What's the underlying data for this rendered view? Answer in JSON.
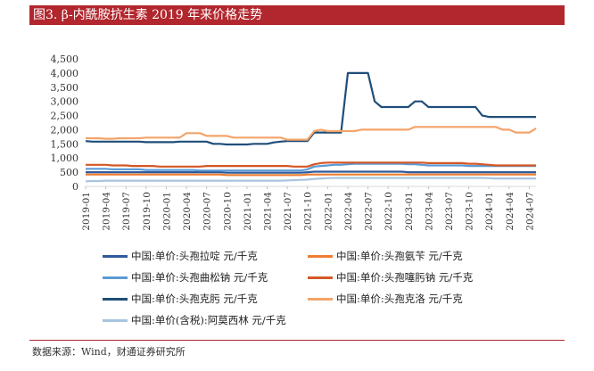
{
  "title": "图3. β-内酰胺抗生素 2019 年来价格走势",
  "source": "数据来源：Wind，财通证券研究所",
  "chart_data": {
    "type": "line",
    "x": [
      "2019-01",
      "2019-02",
      "2019-03",
      "2019-04",
      "2019-05",
      "2019-06",
      "2019-07",
      "2019-08",
      "2019-09",
      "2019-10",
      "2019-11",
      "2019-12",
      "2020-01",
      "2020-02",
      "2020-03",
      "2020-04",
      "2020-05",
      "2020-06",
      "2020-07",
      "2020-08",
      "2020-09",
      "2020-10",
      "2020-11",
      "2020-12",
      "2021-01",
      "2021-02",
      "2021-03",
      "2021-04",
      "2021-05",
      "2021-06",
      "2021-07",
      "2021-08",
      "2021-09",
      "2021-10",
      "2021-11",
      "2021-12",
      "2022-01",
      "2022-02",
      "2022-03",
      "2022-04",
      "2022-05",
      "2022-06",
      "2022-07",
      "2022-08",
      "2022-09",
      "2022-10",
      "2022-11",
      "2022-12",
      "2023-01",
      "2023-02",
      "2023-03",
      "2023-04",
      "2023-05",
      "2023-06",
      "2023-07",
      "2023-08",
      "2023-09",
      "2023-10",
      "2023-11",
      "2023-12",
      "2024-01",
      "2024-02",
      "2024-03",
      "2024-04",
      "2024-05",
      "2024-06",
      "2024-07",
      "2024-08"
    ],
    "xtick_labels": [
      "2019-01",
      "2019-04",
      "2019-07",
      "2019-10",
      "2020-01",
      "2020-04",
      "2020-07",
      "2020-10",
      "2021-01",
      "2021-04",
      "2021-07",
      "2021-10",
      "2022-01",
      "2022-04",
      "2022-07",
      "2022-10",
      "2023-01",
      "2023-04",
      "2023-07",
      "2023-10",
      "2024-01",
      "2024-04",
      "2024-07"
    ],
    "yticks": [
      "0",
      "500",
      "1,000",
      "1,500",
      "2,000",
      "2,500",
      "3,000",
      "3,500",
      "4,000",
      "4,500"
    ],
    "ylim": [
      0,
      4500
    ],
    "grid": false,
    "legend_position": "bottom",
    "series": [
      {
        "name": "中国:单价:头孢拉啶 元/千克",
        "color": "#2e5a9e",
        "values": [
          500,
          500,
          500,
          500,
          500,
          500,
          500,
          500,
          500,
          500,
          500,
          500,
          500,
          500,
          500,
          500,
          500,
          500,
          500,
          500,
          500,
          480,
          480,
          480,
          480,
          480,
          480,
          480,
          480,
          480,
          480,
          480,
          480,
          500,
          520,
          520,
          520,
          520,
          520,
          520,
          520,
          520,
          520,
          520,
          520,
          520,
          520,
          520,
          500,
          500,
          500,
          500,
          500,
          500,
          500,
          500,
          500,
          500,
          500,
          500,
          500,
          500,
          500,
          500,
          500,
          500,
          500,
          500
        ]
      },
      {
        "name": "中国:单价:头孢氨苄 元/千克",
        "color": "#ed7d31",
        "values": [
          420,
          420,
          420,
          420,
          420,
          420,
          420,
          420,
          420,
          420,
          420,
          420,
          420,
          420,
          420,
          420,
          420,
          420,
          420,
          420,
          420,
          400,
          400,
          400,
          400,
          400,
          400,
          400,
          400,
          400,
          400,
          400,
          400,
          420,
          420,
          420,
          420,
          420,
          420,
          420,
          420,
          420,
          420,
          420,
          420,
          420,
          420,
          420,
          420,
          420,
          420,
          420,
          420,
          420,
          420,
          420,
          420,
          420,
          420,
          420,
          420,
          420,
          420,
          420,
          420,
          420,
          420,
          420
        ]
      },
      {
        "name": "中国:单价:头孢曲松钠 元/千克",
        "color": "#5b9bd5",
        "values": [
          620,
          620,
          620,
          620,
          600,
          600,
          600,
          600,
          600,
          580,
          580,
          580,
          580,
          580,
          580,
          580,
          580,
          560,
          560,
          560,
          560,
          560,
          560,
          560,
          560,
          560,
          560,
          560,
          560,
          560,
          560,
          560,
          560,
          600,
          700,
          720,
          740,
          760,
          760,
          780,
          800,
          800,
          800,
          800,
          800,
          800,
          800,
          800,
          780,
          780,
          760,
          740,
          740,
          740,
          740,
          740,
          740,
          720,
          720,
          720,
          720,
          720,
          720,
          720,
          720,
          720,
          720,
          720
        ]
      },
      {
        "name": "中国:单价:头孢噻肟钠 元/千克",
        "color": "#d45726",
        "values": [
          760,
          760,
          760,
          760,
          740,
          740,
          740,
          720,
          720,
          720,
          720,
          700,
          700,
          700,
          700,
          700,
          700,
          700,
          720,
          720,
          720,
          720,
          720,
          720,
          720,
          720,
          720,
          720,
          720,
          720,
          720,
          700,
          700,
          700,
          780,
          820,
          840,
          840,
          840,
          840,
          840,
          840,
          840,
          840,
          840,
          840,
          840,
          840,
          840,
          840,
          840,
          820,
          820,
          820,
          820,
          820,
          820,
          800,
          800,
          780,
          760,
          740,
          740,
          740,
          740,
          740,
          740,
          740
        ]
      },
      {
        "name": "中国:单价:头孢克肟 元/千克",
        "color": "#1f4e79",
        "values": [
          1600,
          1580,
          1580,
          1580,
          1580,
          1580,
          1580,
          1580,
          1580,
          1560,
          1560,
          1560,
          1560,
          1560,
          1580,
          1580,
          1580,
          1580,
          1580,
          1500,
          1500,
          1480,
          1480,
          1480,
          1480,
          1500,
          1500,
          1500,
          1550,
          1580,
          1600,
          1600,
          1600,
          1600,
          1900,
          1900,
          1900,
          1900,
          1900,
          4000,
          4000,
          4000,
          4000,
          3000,
          2800,
          2800,
          2800,
          2800,
          2800,
          3000,
          3000,
          2800,
          2800,
          2800,
          2800,
          2800,
          2800,
          2800,
          2800,
          2500,
          2450,
          2450,
          2450,
          2450,
          2450,
          2450,
          2450,
          2450
        ]
      },
      {
        "name": "中国:单价:头孢克洛 元/千克",
        "color": "#f4a46a",
        "values": [
          1700,
          1700,
          1700,
          1680,
          1680,
          1700,
          1700,
          1700,
          1700,
          1720,
          1720,
          1720,
          1720,
          1720,
          1720,
          1880,
          1880,
          1880,
          1780,
          1780,
          1780,
          1780,
          1720,
          1720,
          1720,
          1720,
          1720,
          1720,
          1720,
          1720,
          1650,
          1650,
          1650,
          1650,
          1950,
          2000,
          1950,
          1950,
          1950,
          1950,
          1950,
          2000,
          2000,
          2000,
          2000,
          2000,
          2000,
          2000,
          2000,
          2100,
          2100,
          2100,
          2100,
          2100,
          2100,
          2100,
          2100,
          2100,
          2100,
          2100,
          2100,
          2100,
          2000,
          2000,
          1900,
          1900,
          1900,
          2050
        ]
      },
      {
        "name": "中国:单价(含税):阿莫西林 元/千克",
        "color": "#a8c4de",
        "values": [
          180,
          190,
          190,
          200,
          200,
          200,
          200,
          200,
          200,
          200,
          200,
          200,
          200,
          200,
          200,
          200,
          200,
          200,
          200,
          200,
          200,
          200,
          200,
          200,
          200,
          200,
          200,
          200,
          200,
          200,
          210,
          220,
          230,
          240,
          260,
          280,
          290,
          300,
          300,
          300,
          300,
          300,
          300,
          300,
          300,
          300,
          300,
          300,
          300,
          300,
          300,
          300,
          300,
          300,
          300,
          300,
          300,
          300,
          300,
          300,
          290,
          280,
          280,
          280,
          280,
          280,
          280,
          280
        ]
      }
    ]
  }
}
